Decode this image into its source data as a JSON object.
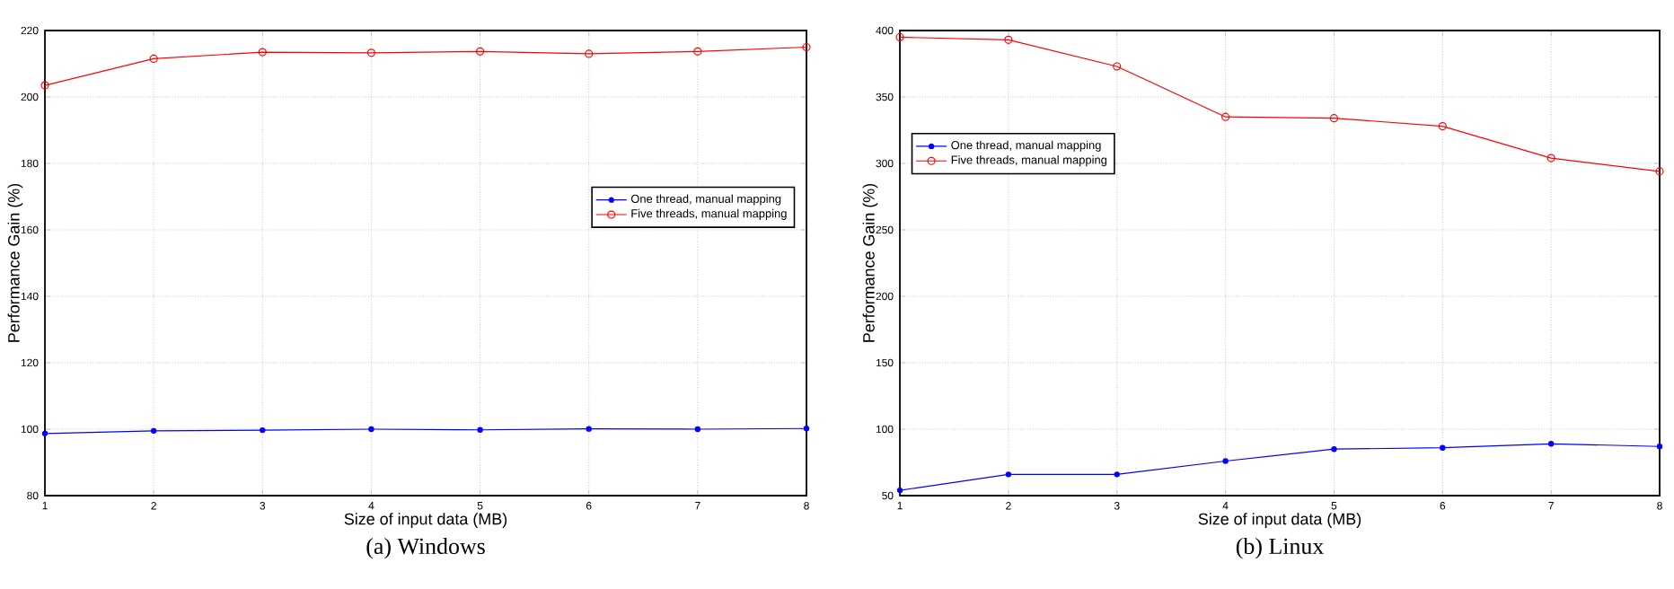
{
  "chart_data": [
    {
      "type": "line",
      "title": "(a) Windows",
      "xlabel": "Size of input data (MB)",
      "ylabel": "Performance Gain (%)",
      "x": [
        1,
        2,
        3,
        4,
        5,
        6,
        7,
        8
      ],
      "xlim": [
        1,
        8
      ],
      "xticks": [
        1,
        2,
        3,
        4,
        5,
        6,
        7,
        8
      ],
      "ylim": [
        80,
        220
      ],
      "yticks": [
        80,
        100,
        120,
        140,
        160,
        180,
        200,
        220
      ],
      "grid": true,
      "legend": "right",
      "line_style": "solid",
      "series": [
        {
          "name": "One thread, manual mapping",
          "color": "#0000ff",
          "marker": "star",
          "values": [
            98.7,
            99.5,
            99.7,
            100,
            99.8,
            100.1,
            100,
            100.2
          ]
        },
        {
          "name": "Five threads, manual mapping",
          "color": "#ff0000",
          "marker": "circle",
          "values": [
            203.5,
            211.5,
            213.5,
            213.3,
            213.7,
            213,
            213.7,
            215
          ]
        }
      ]
    },
    {
      "type": "line",
      "title": "(b) Linux",
      "xlabel": "Size of input data (MB)",
      "ylabel": "Performance Gain (%)",
      "x": [
        1,
        2,
        3,
        4,
        5,
        6,
        7,
        8
      ],
      "xlim": [
        1,
        8
      ],
      "xticks": [
        1,
        2,
        3,
        4,
        5,
        6,
        7,
        8
      ],
      "ylim": [
        50,
        400
      ],
      "yticks": [
        50,
        100,
        150,
        200,
        250,
        300,
        350,
        400
      ],
      "grid": true,
      "legend": "top left",
      "line_style": "solid",
      "series": [
        {
          "name": "One thread, manual mapping",
          "color": "#0000ff",
          "marker": "star",
          "values": [
            54,
            66,
            66,
            76,
            85,
            86,
            89,
            87
          ]
        },
        {
          "name": "Five threads, manual mapping",
          "color": "#ff0000",
          "marker": "circle",
          "values": [
            395,
            393,
            373,
            335,
            334,
            328,
            304,
            294
          ]
        }
      ]
    }
  ]
}
